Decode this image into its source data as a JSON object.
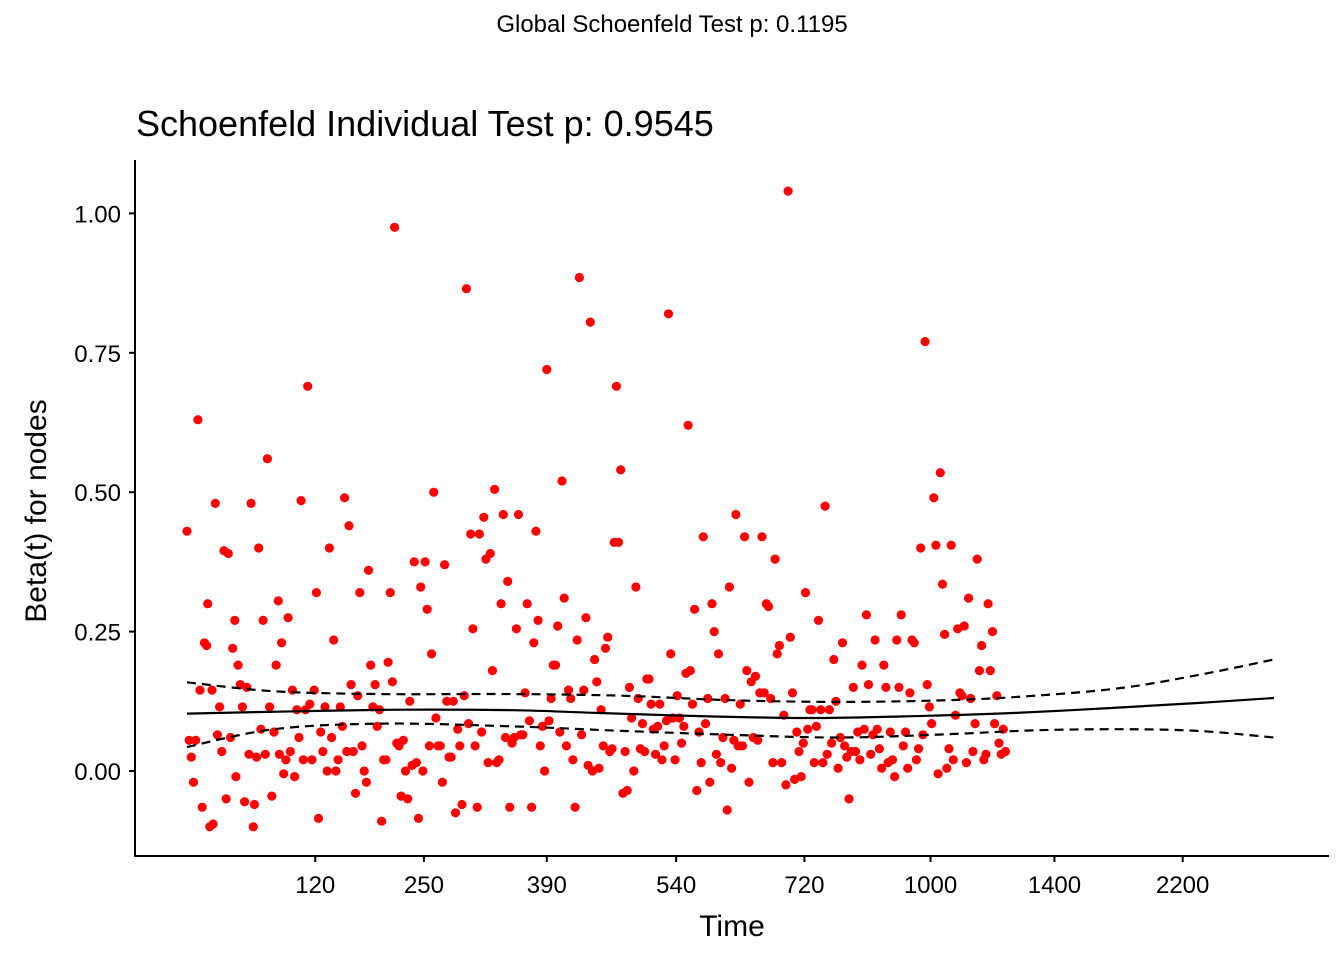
{
  "global_title": "Global Schoenfeld Test p: 0.1195",
  "chart_data": {
    "type": "scatter",
    "title": "Schoenfeld Individual Test p: 0.9545",
    "xlabel": "Time",
    "ylabel": "Beta(t) for nodes",
    "x_scale": "rank-transformed time (km)",
    "x_tick_labels": [
      "120",
      "250",
      "390",
      "540",
      "720",
      "1000",
      "1400",
      "2200"
    ],
    "y_ticks": [
      "0.00",
      "0.25",
      "0.50",
      "0.75",
      "1.00"
    ],
    "ylim": [
      -0.15,
      1.08
    ],
    "grid": false,
    "point_color": "#ff0000",
    "line_color": "#000000",
    "x_tick_positions": [
      0.118,
      0.218,
      0.331,
      0.45,
      0.568,
      0.684,
      0.798,
      0.916
    ],
    "points": [
      [
        0.0,
        0.43
      ],
      [
        0.002,
        0.055
      ],
      [
        0.004,
        0.025
      ],
      [
        0.006,
        -0.02
      ],
      [
        0.008,
        0.055
      ],
      [
        0.01,
        0.63
      ],
      [
        0.012,
        0.145
      ],
      [
        0.014,
        -0.065
      ],
      [
        0.016,
        0.23
      ],
      [
        0.018,
        0.225
      ],
      [
        0.019,
        0.3
      ],
      [
        0.021,
        -0.1
      ],
      [
        0.023,
        0.145
      ],
      [
        0.024,
        -0.095
      ],
      [
        0.026,
        0.48
      ],
      [
        0.028,
        0.065
      ],
      [
        0.03,
        0.115
      ],
      [
        0.032,
        0.035
      ],
      [
        0.034,
        0.395
      ],
      [
        0.036,
        -0.05
      ],
      [
        0.038,
        0.39
      ],
      [
        0.04,
        0.06
      ],
      [
        0.042,
        0.22
      ],
      [
        0.044,
        0.27
      ],
      [
        0.045,
        -0.01
      ],
      [
        0.047,
        0.19
      ],
      [
        0.049,
        0.155
      ],
      [
        0.051,
        0.115
      ],
      [
        0.053,
        -0.055
      ],
      [
        0.055,
        0.15
      ],
      [
        0.057,
        0.03
      ],
      [
        0.059,
        0.48
      ],
      [
        0.061,
        -0.1
      ],
      [
        0.062,
        -0.06
      ],
      [
        0.064,
        0.025
      ],
      [
        0.066,
        0.4
      ],
      [
        0.068,
        0.075
      ],
      [
        0.07,
        0.27
      ],
      [
        0.072,
        0.03
      ],
      [
        0.074,
        0.56
      ],
      [
        0.076,
        0.115
      ],
      [
        0.078,
        -0.045
      ],
      [
        0.08,
        0.07
      ],
      [
        0.082,
        0.19
      ],
      [
        0.084,
        0.305
      ],
      [
        0.085,
        0.03
      ],
      [
        0.087,
        0.23
      ],
      [
        0.089,
        -0.005
      ],
      [
        0.091,
        0.02
      ],
      [
        0.093,
        0.275
      ],
      [
        0.095,
        0.035
      ],
      [
        0.097,
        0.145
      ],
      [
        0.099,
        -0.01
      ],
      [
        0.101,
        0.11
      ],
      [
        0.103,
        0.06
      ],
      [
        0.105,
        0.485
      ],
      [
        0.107,
        0.02
      ],
      [
        0.109,
        0.11
      ],
      [
        0.111,
        0.69
      ],
      [
        0.113,
        0.12
      ],
      [
        0.115,
        0.02
      ],
      [
        0.117,
        0.145
      ],
      [
        0.119,
        0.32
      ],
      [
        0.121,
        -0.085
      ],
      [
        0.123,
        0.07
      ],
      [
        0.125,
        0.035
      ],
      [
        0.127,
        0.115
      ],
      [
        0.129,
        0.0
      ],
      [
        0.131,
        0.4
      ],
      [
        0.133,
        0.06
      ],
      [
        0.135,
        0.235
      ],
      [
        0.137,
        0.0
      ],
      [
        0.139,
        0.02
      ],
      [
        0.141,
        0.115
      ],
      [
        0.143,
        0.08
      ],
      [
        0.145,
        0.49
      ],
      [
        0.147,
        0.035
      ],
      [
        0.149,
        0.44
      ],
      [
        0.151,
        0.155
      ],
      [
        0.153,
        0.035
      ],
      [
        0.155,
        -0.04
      ],
      [
        0.157,
        0.135
      ],
      [
        0.159,
        0.32
      ],
      [
        0.161,
        0.045
      ],
      [
        0.163,
        0.0
      ],
      [
        0.165,
        -0.02
      ],
      [
        0.167,
        0.36
      ],
      [
        0.169,
        0.19
      ],
      [
        0.171,
        0.115
      ],
      [
        0.173,
        0.155
      ],
      [
        0.175,
        0.08
      ],
      [
        0.177,
        0.11
      ],
      [
        0.179,
        -0.09
      ],
      [
        0.181,
        0.02
      ],
      [
        0.183,
        0.02
      ],
      [
        0.185,
        0.195
      ],
      [
        0.187,
        0.32
      ],
      [
        0.189,
        0.16
      ],
      [
        0.191,
        0.975
      ],
      [
        0.193,
        0.05
      ],
      [
        0.195,
        0.045
      ],
      [
        0.197,
        -0.045
      ],
      [
        0.199,
        0.055
      ],
      [
        0.201,
        0.0
      ],
      [
        0.203,
        -0.05
      ],
      [
        0.205,
        0.125
      ],
      [
        0.207,
        0.01
      ],
      [
        0.209,
        0.375
      ],
      [
        0.211,
        0.015
      ],
      [
        0.213,
        -0.085
      ],
      [
        0.215,
        0.33
      ],
      [
        0.217,
        0.0
      ],
      [
        0.219,
        0.375
      ],
      [
        0.221,
        0.29
      ],
      [
        0.223,
        0.045
      ],
      [
        0.225,
        0.21
      ],
      [
        0.227,
        0.5
      ],
      [
        0.229,
        0.095
      ],
      [
        0.231,
        0.045
      ],
      [
        0.233,
        0.045
      ],
      [
        0.235,
        -0.02
      ],
      [
        0.237,
        0.37
      ],
      [
        0.239,
        0.125
      ],
      [
        0.241,
        0.025
      ],
      [
        0.243,
        0.025
      ],
      [
        0.245,
        0.125
      ],
      [
        0.247,
        -0.075
      ],
      [
        0.249,
        0.075
      ],
      [
        0.251,
        0.045
      ],
      [
        0.253,
        -0.06
      ],
      [
        0.255,
        0.135
      ],
      [
        0.257,
        0.865
      ],
      [
        0.259,
        0.085
      ],
      [
        0.261,
        0.425
      ],
      [
        0.263,
        0.255
      ],
      [
        0.265,
        0.045
      ],
      [
        0.267,
        -0.065
      ],
      [
        0.269,
        0.425
      ],
      [
        0.271,
        0.07
      ],
      [
        0.273,
        0.455
      ],
      [
        0.275,
        0.38
      ],
      [
        0.277,
        0.015
      ],
      [
        0.279,
        0.39
      ],
      [
        0.281,
        0.18
      ],
      [
        0.283,
        0.505
      ],
      [
        0.285,
        0.015
      ],
      [
        0.287,
        0.02
      ],
      [
        0.289,
        0.3
      ],
      [
        0.291,
        0.46
      ],
      [
        0.293,
        0.06
      ],
      [
        0.295,
        0.34
      ],
      [
        0.297,
        -0.065
      ],
      [
        0.299,
        0.05
      ],
      [
        0.301,
        0.06
      ],
      [
        0.303,
        0.255
      ],
      [
        0.305,
        0.46
      ],
      [
        0.307,
        0.065
      ],
      [
        0.309,
        0.065
      ],
      [
        0.311,
        0.14
      ],
      [
        0.313,
        0.3
      ],
      [
        0.315,
        0.09
      ],
      [
        0.317,
        -0.065
      ],
      [
        0.319,
        0.23
      ],
      [
        0.321,
        0.43
      ],
      [
        0.323,
        0.27
      ],
      [
        0.325,
        0.045
      ],
      [
        0.327,
        0.08
      ],
      [
        0.329,
        0.0
      ],
      [
        0.331,
        0.72
      ],
      [
        0.333,
        0.09
      ],
      [
        0.335,
        0.13
      ],
      [
        0.337,
        0.19
      ],
      [
        0.339,
        0.19
      ],
      [
        0.341,
        0.26
      ],
      [
        0.343,
        0.07
      ],
      [
        0.345,
        0.52
      ],
      [
        0.347,
        0.31
      ],
      [
        0.349,
        0.045
      ],
      [
        0.351,
        0.145
      ],
      [
        0.353,
        0.13
      ],
      [
        0.355,
        0.02
      ],
      [
        0.357,
        -0.065
      ],
      [
        0.359,
        0.235
      ],
      [
        0.361,
        0.885
      ],
      [
        0.363,
        0.065
      ],
      [
        0.365,
        0.145
      ],
      [
        0.367,
        0.275
      ],
      [
        0.369,
        0.01
      ],
      [
        0.371,
        0.805
      ],
      [
        0.373,
        0.0
      ],
      [
        0.375,
        0.2
      ],
      [
        0.377,
        0.16
      ],
      [
        0.379,
        0.005
      ],
      [
        0.381,
        0.11
      ],
      [
        0.383,
        0.045
      ],
      [
        0.385,
        0.22
      ],
      [
        0.387,
        0.24
      ],
      [
        0.389,
        0.035
      ],
      [
        0.391,
        0.04
      ],
      [
        0.393,
        0.41
      ],
      [
        0.395,
        0.69
      ],
      [
        0.397,
        0.41
      ],
      [
        0.399,
        0.54
      ],
      [
        0.401,
        -0.04
      ],
      [
        0.403,
        0.035
      ],
      [
        0.405,
        -0.035
      ],
      [
        0.407,
        0.15
      ],
      [
        0.409,
        0.095
      ],
      [
        0.411,
        0.0
      ],
      [
        0.413,
        0.33
      ],
      [
        0.415,
        0.13
      ],
      [
        0.417,
        0.04
      ],
      [
        0.419,
        0.085
      ],
      [
        0.421,
        0.035
      ],
      [
        0.423,
        0.165
      ],
      [
        0.425,
        0.165
      ],
      [
        0.427,
        0.12
      ],
      [
        0.429,
        0.075
      ],
      [
        0.431,
        0.03
      ],
      [
        0.433,
        0.08
      ],
      [
        0.435,
        0.12
      ],
      [
        0.437,
        0.02
      ],
      [
        0.439,
        0.045
      ],
      [
        0.441,
        0.09
      ],
      [
        0.443,
        0.82
      ],
      [
        0.445,
        0.21
      ],
      [
        0.447,
        0.095
      ],
      [
        0.449,
        0.02
      ],
      [
        0.451,
        0.135
      ],
      [
        0.453,
        0.095
      ],
      [
        0.455,
        0.05
      ],
      [
        0.457,
        0.08
      ],
      [
        0.459,
        0.175
      ],
      [
        0.461,
        0.62
      ],
      [
        0.463,
        0.18
      ],
      [
        0.465,
        0.12
      ],
      [
        0.467,
        0.29
      ],
      [
        0.469,
        -0.035
      ],
      [
        0.471,
        0.07
      ],
      [
        0.473,
        0.015
      ],
      [
        0.475,
        0.42
      ],
      [
        0.477,
        0.085
      ],
      [
        0.479,
        0.13
      ],
      [
        0.481,
        -0.02
      ],
      [
        0.483,
        0.3
      ],
      [
        0.485,
        0.25
      ],
      [
        0.487,
        0.03
      ],
      [
        0.489,
        0.21
      ],
      [
        0.491,
        0.015
      ],
      [
        0.493,
        0.06
      ],
      [
        0.495,
        0.13
      ],
      [
        0.497,
        -0.07
      ],
      [
        0.499,
        0.33
      ],
      [
        0.501,
        0.005
      ],
      [
        0.503,
        0.055
      ],
      [
        0.505,
        0.46
      ],
      [
        0.507,
        0.045
      ],
      [
        0.509,
        0.12
      ],
      [
        0.511,
        0.045
      ],
      [
        0.513,
        0.42
      ],
      [
        0.515,
        0.18
      ],
      [
        0.517,
        -0.02
      ],
      [
        0.519,
        0.16
      ],
      [
        0.521,
        0.06
      ],
      [
        0.523,
        0.17
      ],
      [
        0.525,
        0.055
      ],
      [
        0.527,
        0.14
      ],
      [
        0.529,
        0.42
      ],
      [
        0.531,
        0.14
      ],
      [
        0.533,
        0.3
      ],
      [
        0.535,
        0.295
      ],
      [
        0.537,
        0.13
      ],
      [
        0.539,
        0.015
      ],
      [
        0.541,
        0.38
      ],
      [
        0.543,
        0.21
      ],
      [
        0.545,
        0.225
      ],
      [
        0.547,
        0.015
      ],
      [
        0.549,
        0.1
      ],
      [
        0.551,
        -0.025
      ],
      [
        0.553,
        1.04
      ],
      [
        0.555,
        0.24
      ],
      [
        0.557,
        0.14
      ],
      [
        0.559,
        -0.015
      ],
      [
        0.561,
        0.07
      ],
      [
        0.563,
        0.035
      ],
      [
        0.565,
        -0.01
      ],
      [
        0.567,
        0.05
      ],
      [
        0.569,
        0.32
      ],
      [
        0.571,
        0.075
      ],
      [
        0.573,
        0.11
      ],
      [
        0.575,
        0.11
      ],
      [
        0.577,
        0.015
      ],
      [
        0.579,
        0.08
      ],
      [
        0.581,
        0.27
      ],
      [
        0.583,
        0.11
      ],
      [
        0.585,
        0.015
      ],
      [
        0.587,
        0.475
      ],
      [
        0.589,
        0.03
      ],
      [
        0.591,
        0.11
      ],
      [
        0.593,
        0.05
      ],
      [
        0.595,
        0.2
      ],
      [
        0.597,
        0.125
      ],
      [
        0.599,
        0.005
      ],
      [
        0.601,
        0.06
      ],
      [
        0.603,
        0.23
      ],
      [
        0.605,
        0.045
      ],
      [
        0.607,
        0.025
      ],
      [
        0.609,
        -0.05
      ],
      [
        0.611,
        0.035
      ],
      [
        0.613,
        0.15
      ],
      [
        0.615,
        0.035
      ],
      [
        0.617,
        0.07
      ],
      [
        0.619,
        0.02
      ],
      [
        0.621,
        0.19
      ],
      [
        0.623,
        0.075
      ],
      [
        0.625,
        0.28
      ],
      [
        0.627,
        0.155
      ],
      [
        0.629,
        0.03
      ],
      [
        0.631,
        0.065
      ],
      [
        0.633,
        0.235
      ],
      [
        0.635,
        0.075
      ],
      [
        0.637,
        0.04
      ],
      [
        0.639,
        0.005
      ],
      [
        0.641,
        0.19
      ],
      [
        0.643,
        0.15
      ],
      [
        0.645,
        0.015
      ],
      [
        0.647,
        0.07
      ],
      [
        0.649,
        0.02
      ],
      [
        0.651,
        -0.01
      ],
      [
        0.653,
        0.235
      ],
      [
        0.655,
        0.15
      ],
      [
        0.657,
        0.28
      ],
      [
        0.659,
        0.045
      ],
      [
        0.661,
        0.07
      ],
      [
        0.663,
        0.005
      ],
      [
        0.665,
        0.14
      ],
      [
        0.667,
        0.235
      ],
      [
        0.669,
        0.23
      ],
      [
        0.671,
        0.02
      ],
      [
        0.673,
        0.04
      ],
      [
        0.675,
        0.4
      ],
      [
        0.677,
        0.065
      ],
      [
        0.679,
        0.77
      ],
      [
        0.681,
        0.155
      ],
      [
        0.683,
        0.115
      ],
      [
        0.685,
        0.085
      ],
      [
        0.687,
        0.49
      ],
      [
        0.689,
        0.405
      ],
      [
        0.691,
        -0.005
      ],
      [
        0.693,
        0.535
      ],
      [
        0.695,
        0.335
      ],
      [
        0.697,
        0.245
      ],
      [
        0.699,
        0.005
      ],
      [
        0.701,
        0.04
      ],
      [
        0.703,
        0.405
      ],
      [
        0.705,
        0.02
      ],
      [
        0.707,
        0.1
      ],
      [
        0.709,
        0.255
      ],
      [
        0.711,
        0.14
      ],
      [
        0.713,
        0.135
      ],
      [
        0.715,
        0.26
      ],
      [
        0.717,
        0.015
      ],
      [
        0.719,
        0.31
      ],
      [
        0.721,
        0.13
      ],
      [
        0.723,
        0.035
      ],
      [
        0.725,
        0.085
      ],
      [
        0.727,
        0.38
      ],
      [
        0.729,
        0.18
      ],
      [
        0.731,
        0.225
      ],
      [
        0.733,
        0.02
      ],
      [
        0.735,
        0.03
      ],
      [
        0.737,
        0.3
      ],
      [
        0.739,
        0.18
      ],
      [
        0.741,
        0.25
      ],
      [
        0.743,
        0.085
      ],
      [
        0.745,
        0.135
      ],
      [
        0.747,
        0.05
      ],
      [
        0.749,
        0.03
      ],
      [
        0.751,
        0.075
      ],
      [
        0.753,
        0.035
      ]
    ]
  }
}
